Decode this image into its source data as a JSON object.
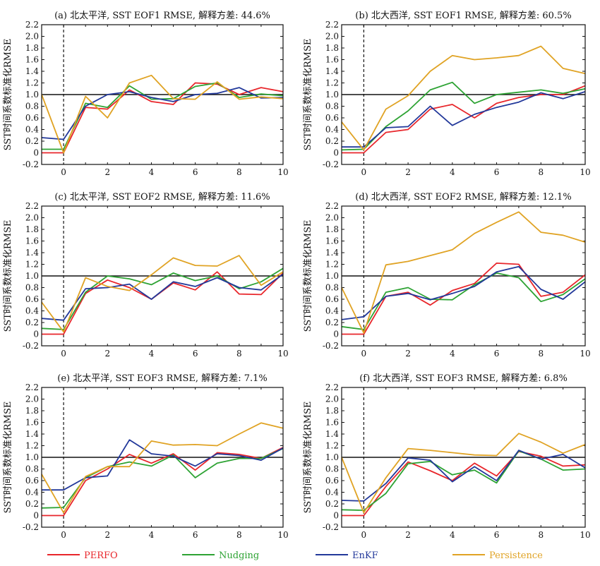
{
  "chart_data": [
    {
      "type": "line",
      "title": "(a) 北太平洋, SST EOF1 RMSE, 解释方差: 44.6%",
      "xlabel": "",
      "ylabel": "SST时间系数标准化RMSE",
      "xlim": [
        -1,
        10
      ],
      "ylim": [
        -0.2,
        2.2
      ],
      "x": [
        -1,
        0,
        1,
        2,
        3,
        4,
        5,
        6,
        7,
        8,
        9,
        10
      ],
      "xticks": [
        "0",
        "2",
        "4",
        "6",
        "8",
        "10"
      ],
      "yticks": [
        "-0.2",
        "0",
        "0.2",
        "0.4",
        "0.6",
        "0.8",
        "1.0",
        "1.2",
        "1.4",
        "1.6",
        "1.8",
        "2.0",
        "2.2"
      ],
      "reference_y": 1.0,
      "series": [
        {
          "name": "PERFO",
          "values": [
            0.0,
            0.0,
            0.78,
            0.75,
            1.08,
            0.88,
            0.83,
            1.2,
            1.18,
            1.0,
            1.12,
            1.05
          ]
        },
        {
          "name": "Nudging",
          "values": [
            0.06,
            0.06,
            0.85,
            0.78,
            1.15,
            0.92,
            0.93,
            1.14,
            1.2,
            0.95,
            1.01,
            0.98
          ]
        },
        {
          "name": "EnKF",
          "values": [
            0.26,
            0.23,
            0.8,
            1.0,
            1.05,
            0.95,
            0.88,
            1.0,
            1.02,
            1.12,
            0.94,
            0.95
          ]
        },
        {
          "name": "Persistence",
          "values": [
            1.0,
            0.0,
            0.97,
            0.6,
            1.2,
            1.33,
            0.93,
            0.92,
            1.22,
            0.92,
            0.96,
            0.93
          ]
        }
      ]
    },
    {
      "type": "line",
      "title": "(b) 北大西洋, SST EOF1 RMSE, 解释方差: 60.5%",
      "xlabel": "",
      "ylabel": "SST时间系数标准化RMSE",
      "xlim": [
        -1,
        10
      ],
      "ylim": [
        -0.2,
        2.2
      ],
      "x": [
        -1,
        0,
        1,
        2,
        3,
        4,
        5,
        6,
        7,
        8,
        9,
        10
      ],
      "xticks": [
        "0",
        "2",
        "4",
        "6",
        "8",
        "10"
      ],
      "yticks": [
        "-0.2",
        "0",
        "0.2",
        "0.4",
        "0.6",
        "0.8",
        "1.0",
        "1.2",
        "1.4",
        "1.6",
        "1.8",
        "2.0",
        "2.2"
      ],
      "reference_y": 1.0,
      "series": [
        {
          "name": "PERFO",
          "values": [
            0.0,
            0.0,
            0.35,
            0.4,
            0.75,
            0.83,
            0.6,
            0.85,
            0.95,
            1.0,
            1.0,
            1.15
          ]
        },
        {
          "name": "Nudging",
          "values": [
            0.05,
            0.06,
            0.45,
            0.72,
            1.08,
            1.21,
            0.85,
            1.0,
            1.04,
            1.08,
            1.02,
            1.1
          ]
        },
        {
          "name": "EnKF",
          "values": [
            0.1,
            0.1,
            0.43,
            0.45,
            0.8,
            0.47,
            0.66,
            0.78,
            0.87,
            1.03,
            0.93,
            1.05
          ]
        },
        {
          "name": "Persistence",
          "values": [
            0.53,
            0.05,
            0.75,
            0.98,
            1.4,
            1.67,
            1.6,
            1.63,
            1.67,
            1.83,
            1.45,
            1.36
          ]
        }
      ]
    },
    {
      "type": "line",
      "title": "(c) 北太平洋, SST EOF2 RMSE, 解释方差: 11.6%",
      "xlabel": "",
      "ylabel": "SST时间系数标准化RMSE",
      "xlim": [
        -1,
        10
      ],
      "ylim": [
        -0.2,
        2.2
      ],
      "x": [
        -1,
        0,
        1,
        2,
        3,
        4,
        5,
        6,
        7,
        8,
        9,
        10
      ],
      "xticks": [
        "0",
        "2",
        "4",
        "6",
        "8",
        "10"
      ],
      "yticks": [
        "-0.2",
        "0",
        "0.2",
        "0.4",
        "0.6",
        "0.8",
        "1.0",
        "1.2",
        "1.4",
        "1.6",
        "1.8",
        "2.0",
        "2.2"
      ],
      "reference_y": 1.0,
      "series": [
        {
          "name": "PERFO",
          "values": [
            0.0,
            0.0,
            0.7,
            0.93,
            0.8,
            0.6,
            0.88,
            0.76,
            1.07,
            0.69,
            0.68,
            1.05
          ]
        },
        {
          "name": "Nudging",
          "values": [
            0.1,
            0.08,
            0.72,
            1.0,
            0.95,
            0.85,
            1.05,
            0.92,
            1.0,
            0.78,
            0.9,
            1.13
          ]
        },
        {
          "name": "EnKF",
          "values": [
            0.27,
            0.24,
            0.78,
            0.8,
            0.86,
            0.6,
            0.9,
            0.82,
            0.97,
            0.8,
            0.76,
            1.03
          ]
        },
        {
          "name": "Persistence",
          "values": [
            0.55,
            0.04,
            0.97,
            0.82,
            0.75,
            1.02,
            1.31,
            1.18,
            1.17,
            1.35,
            0.84,
            1.07
          ]
        }
      ]
    },
    {
      "type": "line",
      "title": "(d) 北大西洋, SST EOF2 RMSE, 解释方差: 12.1%",
      "xlabel": "",
      "ylabel": "SST时间系数标准化RMSE",
      "xlim": [
        -1,
        10
      ],
      "ylim": [
        -0.2,
        2.2
      ],
      "x": [
        -1,
        0,
        1,
        2,
        3,
        4,
        5,
        6,
        7,
        8,
        9,
        10
      ],
      "xticks": [
        "0",
        "2",
        "4",
        "6",
        "8",
        "10"
      ],
      "yticks": [
        "-0.2",
        "0",
        "0.2",
        "0.4",
        "0.6",
        "0.8",
        "1.0",
        "1.2",
        "1.4",
        "1.6",
        "1.8",
        "2.0",
        "2.2"
      ],
      "reference_y": 1.0,
      "series": [
        {
          "name": "PERFO",
          "values": [
            0.0,
            0.0,
            0.65,
            0.72,
            0.5,
            0.75,
            0.87,
            1.22,
            1.2,
            0.65,
            0.72,
            1.02
          ]
        },
        {
          "name": "Nudging",
          "values": [
            0.13,
            0.08,
            0.72,
            0.8,
            0.6,
            0.59,
            0.85,
            1.05,
            0.97,
            0.56,
            0.68,
            0.95
          ]
        },
        {
          "name": "EnKF",
          "values": [
            0.25,
            0.3,
            0.65,
            0.7,
            0.59,
            0.7,
            0.82,
            1.07,
            1.16,
            0.77,
            0.6,
            0.9
          ]
        },
        {
          "name": "Persistence",
          "values": [
            0.8,
            0.02,
            1.19,
            1.25,
            1.35,
            1.45,
            1.73,
            1.92,
            2.1,
            1.75,
            1.7,
            1.58
          ]
        }
      ]
    },
    {
      "type": "line",
      "title": "(e) 北太平洋, SST EOF3 RMSE, 解释方差: 7.1%",
      "xlabel": "",
      "ylabel": "SST时间系数标准化RMSE",
      "xlim": [
        -1,
        10
      ],
      "ylim": [
        -0.2,
        2.2
      ],
      "x": [
        -1,
        0,
        1,
        2,
        3,
        4,
        5,
        6,
        7,
        8,
        9,
        10
      ],
      "xticks": [
        "0",
        "2",
        "4",
        "6",
        "8",
        "10"
      ],
      "yticks": [
        "-0.2",
        "0",
        "0.2",
        "0.4",
        "0.6",
        "0.8",
        "1.0",
        "1.2",
        "1.4",
        "1.6",
        "1.8",
        "2.0",
        "2.2"
      ],
      "reference_y": 1.0,
      "series": [
        {
          "name": "PERFO",
          "values": [
            0.0,
            0.0,
            0.6,
            0.8,
            1.05,
            0.9,
            1.06,
            0.78,
            1.08,
            1.05,
            0.98,
            1.17
          ]
        },
        {
          "name": "Nudging",
          "values": [
            0.13,
            0.14,
            0.65,
            0.84,
            0.92,
            0.85,
            1.04,
            0.65,
            0.9,
            0.98,
            0.98,
            1.15
          ]
        },
        {
          "name": "EnKF",
          "values": [
            0.44,
            0.44,
            0.65,
            0.68,
            1.3,
            1.06,
            1.02,
            0.85,
            1.06,
            1.03,
            0.95,
            1.16
          ]
        },
        {
          "name": "Persistence",
          "values": [
            0.71,
            0.05,
            0.67,
            0.84,
            0.84,
            1.28,
            1.21,
            1.22,
            1.2,
            1.4,
            1.59,
            1.5
          ]
        }
      ]
    },
    {
      "type": "line",
      "title": "(f) 北大西洋, SST EOF3 RMSE, 解释方差: 6.8%",
      "xlabel": "",
      "ylabel": "SST时间系数标准化RMSE",
      "xlim": [
        -1,
        10
      ],
      "ylim": [
        -0.2,
        2.2
      ],
      "x": [
        -1,
        0,
        1,
        2,
        3,
        4,
        5,
        6,
        7,
        8,
        9,
        10
      ],
      "xticks": [
        "0",
        "2",
        "4",
        "6",
        "8",
        "10"
      ],
      "yticks": [
        "-0.2",
        "0",
        "0.2",
        "0.4",
        "0.6",
        "0.8",
        "1.0",
        "1.2",
        "1.4",
        "1.6",
        "1.8",
        "2.0",
        "2.2"
      ],
      "reference_y": 1.0,
      "series": [
        {
          "name": "PERFO",
          "values": [
            0.0,
            0.0,
            0.5,
            0.92,
            0.77,
            0.6,
            0.9,
            0.68,
            1.1,
            1.02,
            0.85,
            0.87
          ]
        },
        {
          "name": "Nudging",
          "values": [
            0.1,
            0.09,
            0.38,
            0.89,
            0.93,
            0.7,
            0.78,
            0.56,
            1.11,
            0.97,
            0.78,
            0.8
          ]
        },
        {
          "name": "EnKF",
          "values": [
            0.26,
            0.25,
            0.55,
            0.99,
            0.95,
            0.58,
            0.84,
            0.6,
            1.12,
            0.97,
            1.05,
            0.82
          ]
        },
        {
          "name": "Persistence",
          "values": [
            1.0,
            0.05,
            0.65,
            1.15,
            1.12,
            1.08,
            1.04,
            1.03,
            1.41,
            1.26,
            1.07,
            1.22
          ]
        }
      ]
    }
  ],
  "legend": [
    {
      "name": "PERFO",
      "color": "#e8262b"
    },
    {
      "name": "Nudging",
      "color": "#2ea334"
    },
    {
      "name": "EnKF",
      "color": "#22389a"
    },
    {
      "name": "Persistence",
      "color": "#e0a324"
    }
  ],
  "colors": {
    "PERFO": "#e8262b",
    "Nudging": "#2ea334",
    "EnKF": "#22389a",
    "Persistence": "#e0a324",
    "axis": "#111111"
  }
}
